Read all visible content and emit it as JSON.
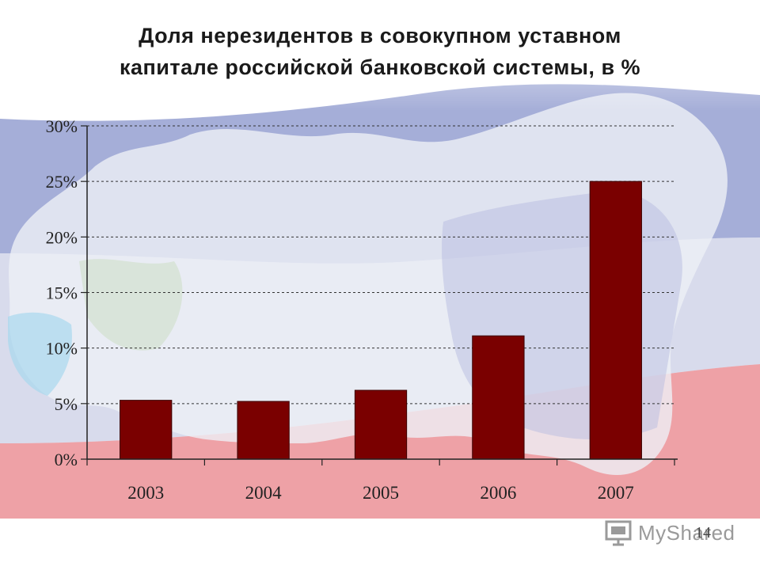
{
  "slide": {
    "title_line1": "Доля нерезидентов в совокупном уставном",
    "title_line2": "капитале российской банковской системы, в %",
    "page_number": "14",
    "watermark": "MyShared"
  },
  "colors": {
    "bar": "#7a0000",
    "flag_white": "#f4f4f6",
    "flag_blue": "#4a5aa8",
    "flag_red": "#d8404a",
    "grid": "#333333"
  },
  "chart_data": {
    "type": "bar",
    "categories": [
      "2003",
      "2004",
      "2005",
      "2006",
      "2007"
    ],
    "values": [
      5.3,
      5.2,
      6.2,
      11.1,
      25.0
    ],
    "ylim": [
      0,
      30
    ],
    "yticks": [
      "0%",
      "5%",
      "10%",
      "15%",
      "20%",
      "25%",
      "30%"
    ],
    "grid": "dashed horizontal",
    "legend": "none"
  }
}
